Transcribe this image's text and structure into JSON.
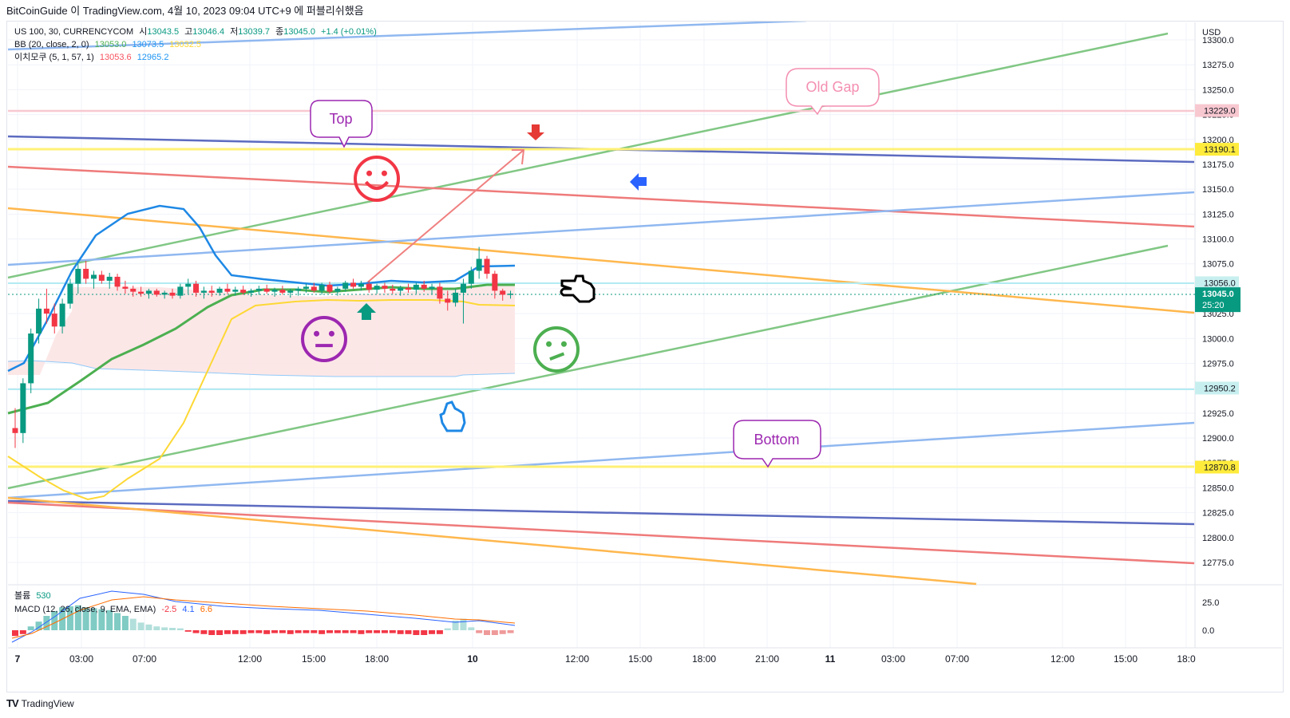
{
  "header": {
    "text": "BitCoinGuide 이 TradingView.com, 4월 10, 2023 09:04 UTC+9 에 퍼블리쉬했음"
  },
  "legend": {
    "symbol": "US 100, 30, CURRENCYCOM",
    "o_label": "시",
    "o": "13043.5",
    "h_label": "고",
    "h": "13046.4",
    "l_label": "저",
    "l": "13039.7",
    "c_label": "종",
    "c": "13045.0",
    "chg": "+1.4 (+0.01%)",
    "bb_label": "BB (20, close, 2, 0)",
    "bb_basis": "13053.0",
    "bb_upper": "13073.5",
    "bb_lower": "13032.5",
    "ichi_label": "이치모쿠 (5, 1, 57, 1)",
    "ichi_a": "13053.6",
    "ichi_b": "12965.2",
    "vol_label": "볼륨",
    "vol": "530",
    "macd_label": "MACD (12, 26, close, 9, EMA, EMA)",
    "macd_hist": "-2.5",
    "macd": "4.1",
    "macd_signal": "6.6"
  },
  "price_axis": {
    "currency": "USD",
    "ticks": [
      "13300.0",
      "13275.0",
      "13250.0",
      "13225.0",
      "13200.0",
      "13175.0",
      "13150.0",
      "13125.0",
      "13100.0",
      "13075.0",
      "13050.0",
      "13025.0",
      "13000.0",
      "12975.0",
      "12950.0",
      "12925.0",
      "12900.0",
      "12875.0",
      "12850.0",
      "12825.0",
      "12800.0",
      "12775.0"
    ],
    "badges": [
      {
        "label": "13229.0",
        "price": 13229.0,
        "bg": "#f8c8d0",
        "fg": "#131722"
      },
      {
        "label": "13190.1",
        "price": 13190.1,
        "bg": "#ffeb3b",
        "fg": "#131722"
      },
      {
        "label": "13056.0",
        "price": 13056.0,
        "bg": "#c8efef",
        "fg": "#131722"
      },
      {
        "label": "12950.2",
        "price": 12950.2,
        "bg": "#c8efef",
        "fg": "#131722"
      },
      {
        "label": "12870.8",
        "price": 12870.8,
        "bg": "#ffeb3b",
        "fg": "#131722"
      }
    ],
    "current": {
      "price_label": "13045.0",
      "countdown": "25:20",
      "price": 13045.0,
      "bg": "#089981"
    }
  },
  "macd_axis": {
    "ticks": [
      "25.0",
      "0.0"
    ]
  },
  "time_axis": {
    "labels": [
      "7",
      "03:00",
      "07:00",
      "12:00",
      "15:00",
      "18:00",
      "10",
      "12:00",
      "15:00",
      "18:00",
      "21:00",
      "11",
      "03:00",
      "07:00",
      "12:00",
      "15:00",
      "18:0"
    ]
  },
  "annotations": {
    "top": "Top",
    "old_gap": "Old Gap",
    "bottom": "Bottom"
  },
  "colors": {
    "up": "#089981",
    "down": "#f23645",
    "bb_basis": "#4caf50",
    "bb_upper": "#2196f3",
    "bb_lower": "#ffeb3b",
    "cloud": "#fce4e4"
  },
  "footer": {
    "brand": "TradingView"
  },
  "chart_data": {
    "type": "candlestick",
    "ylim": [
      12760,
      13310
    ],
    "candles": [
      [
        12910,
        12930,
        12890,
        12905
      ],
      [
        12905,
        12960,
        12895,
        12955
      ],
      [
        12955,
        13010,
        12945,
        13005
      ],
      [
        13005,
        13040,
        12995,
        13030
      ],
      [
        13030,
        13050,
        13015,
        13025
      ],
      [
        13025,
        13035,
        13005,
        13012
      ],
      [
        13012,
        13040,
        13005,
        13035
      ],
      [
        13035,
        13060,
        13030,
        13055
      ],
      [
        13055,
        13075,
        13045,
        13070
      ],
      [
        13070,
        13078,
        13055,
        13060
      ],
      [
        13060,
        13068,
        13050,
        13064
      ],
      [
        13064,
        13068,
        13055,
        13058
      ],
      [
        13058,
        13066,
        13050,
        13062
      ],
      [
        13062,
        13065,
        13048,
        13052
      ],
      [
        13052,
        13058,
        13045,
        13050
      ],
      [
        13050,
        13053,
        13042,
        13047
      ],
      [
        13047,
        13052,
        13042,
        13045
      ],
      [
        13045,
        13050,
        13040,
        13048
      ],
      [
        13048,
        13050,
        13042,
        13044
      ],
      [
        13044,
        13048,
        13040,
        13046
      ],
      [
        13046,
        13050,
        13040,
        13043
      ],
      [
        13043,
        13055,
        13040,
        13052
      ],
      [
        13052,
        13060,
        13045,
        13055
      ],
      [
        13055,
        13058,
        13042,
        13046
      ],
      [
        13046,
        13052,
        13040,
        13048
      ],
      [
        13048,
        13053,
        13042,
        13046
      ],
      [
        13046,
        13052,
        13043,
        13050
      ],
      [
        13050,
        13055,
        13045,
        13047
      ],
      [
        13047,
        13052,
        13043,
        13049
      ],
      [
        13049,
        13053,
        13044,
        13046
      ],
      [
        13046,
        13050,
        13042,
        13048
      ],
      [
        13048,
        13053,
        13044,
        13050
      ],
      [
        13050,
        13054,
        13045,
        13047
      ],
      [
        13047,
        13051,
        13042,
        13049
      ],
      [
        13049,
        13053,
        13044,
        13046
      ],
      [
        13046,
        13050,
        13041,
        13048
      ],
      [
        13048,
        13052,
        13043,
        13050
      ],
      [
        13050,
        13055,
        13046,
        13052
      ],
      [
        13052,
        13056,
        13046,
        13048
      ],
      [
        13048,
        13056,
        13044,
        13054
      ],
      [
        13054,
        13057,
        13045,
        13047
      ],
      [
        13047,
        13052,
        13043,
        13050
      ],
      [
        13050,
        13058,
        13047,
        13056
      ],
      [
        13056,
        13060,
        13050,
        13052
      ],
      [
        13052,
        13058,
        13048,
        13055
      ],
      [
        13055,
        13058,
        13046,
        13049
      ],
      [
        13049,
        13055,
        13045,
        13053
      ],
      [
        13053,
        13056,
        13046,
        13050
      ],
      [
        13050,
        13054,
        13045,
        13048
      ],
      [
        13048,
        13053,
        13043,
        13051
      ],
      [
        13051,
        13055,
        13046,
        13049
      ],
      [
        13049,
        13056,
        13045,
        13054
      ],
      [
        13054,
        13058,
        13047,
        13050
      ],
      [
        13050,
        13055,
        13044,
        13052
      ],
      [
        13052,
        13056,
        13035,
        13040
      ],
      [
        13040,
        13048,
        13028,
        13036
      ],
      [
        13036,
        13050,
        13032,
        13046
      ],
      [
        13046,
        13060,
        13015,
        13055
      ],
      [
        13055,
        13072,
        13050,
        13068
      ],
      [
        13068,
        13092,
        13060,
        13080
      ],
      [
        13080,
        13083,
        13060,
        13065
      ],
      [
        13065,
        13068,
        13040,
        13048
      ],
      [
        13048,
        13050,
        13038,
        13044
      ],
      [
        13044,
        13048,
        13040,
        13045
      ]
    ]
  }
}
